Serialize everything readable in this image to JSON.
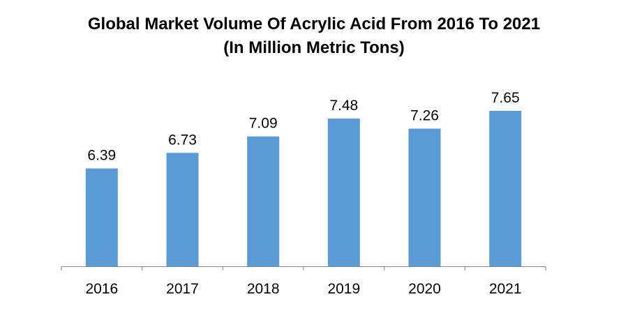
{
  "chart_data": {
    "type": "bar",
    "title_line1": "Global Market Volume Of Acrylic Acid From 2016 To 2021",
    "title_line2": "(In Million Metric Tons)",
    "categories": [
      "2016",
      "2017",
      "2018",
      "2019",
      "2020",
      "2021"
    ],
    "values": [
      6.39,
      6.73,
      7.09,
      7.48,
      7.26,
      7.65
    ],
    "value_labels": [
      "6.39",
      "6.73",
      "7.09",
      "7.48",
      "7.26",
      "7.65"
    ],
    "bar_color": "#5B9BD5",
    "axis_color": "#868686",
    "grid": false,
    "legend": "none"
  }
}
